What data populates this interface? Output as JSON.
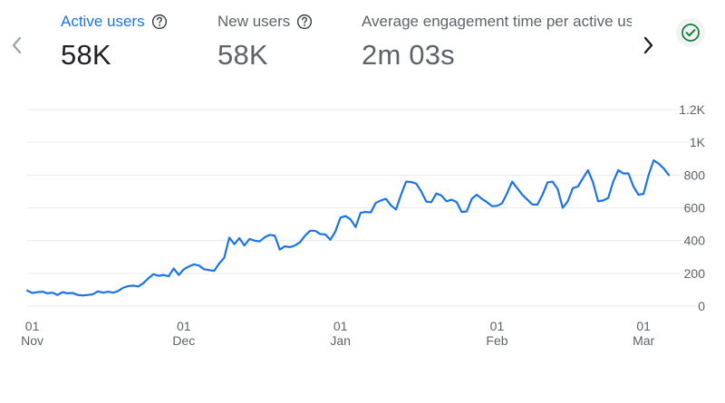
{
  "metrics": [
    {
      "label": "Active users",
      "value": "58K",
      "active": true
    },
    {
      "label": "New users",
      "value": "58K",
      "active": false
    },
    {
      "label": "Average engagement time per active us",
      "value": "2m 03s",
      "active": false
    }
  ],
  "icons": {
    "prev": "chevron-left-icon",
    "next": "chevron-right-icon",
    "help": "help-circle-icon",
    "status": "check-circle-icon"
  },
  "colors": {
    "line": "#1a73e8",
    "active_label": "#1a73e8",
    "status_check": "#188038"
  },
  "chart_data": {
    "type": "line",
    "title": "",
    "xlabel": "",
    "ylabel": "",
    "x_start": "2023-10-31",
    "ylim": [
      0,
      1200
    ],
    "y_ticks": [
      "1.2K",
      "1K",
      "800",
      "600",
      "400",
      "200",
      "0"
    ],
    "y_tick_values": [
      1200,
      1000,
      800,
      600,
      400,
      200,
      0
    ],
    "x_ticks": [
      {
        "day": "01",
        "month": "Nov",
        "date": "2023-11-01"
      },
      {
        "day": "01",
        "month": "Dec",
        "date": "2023-12-01"
      },
      {
        "day": "01",
        "month": "Jan",
        "date": "2024-01-01"
      },
      {
        "day": "01",
        "month": "Feb",
        "date": "2024-02-01"
      },
      {
        "day": "01",
        "month": "Mar",
        "date": "2024-03-01"
      }
    ],
    "grid": true,
    "series": [
      {
        "values": [
          95,
          80,
          85,
          88,
          78,
          82,
          68,
          85,
          78,
          80,
          68,
          65,
          68,
          72,
          90,
          82,
          88,
          82,
          92,
          112,
          122,
          125,
          120,
          140,
          170,
          195,
          185,
          190,
          182,
          230,
          190,
          225,
          242,
          255,
          248,
          225,
          220,
          215,
          260,
          295,
          418,
          378,
          415,
          370,
          410,
          400,
          395,
          420,
          435,
          430,
          345,
          365,
          360,
          370,
          390,
          430,
          460,
          460,
          440,
          438,
          405,
          455,
          540,
          550,
          530,
          482,
          570,
          575,
          572,
          630,
          645,
          655,
          615,
          590,
          680,
          760,
          758,
          748,
          700,
          638,
          635,
          688,
          675,
          640,
          650,
          635,
          575,
          578,
          655,
          680,
          655,
          635,
          610,
          612,
          628,
          690,
          760,
          720,
          680,
          650,
          620,
          620,
          680,
          755,
          760,
          715,
          600,
          640,
          720,
          730,
          780,
          830,
          755,
          640,
          645,
          660,
          760,
          830,
          810,
          810,
          730,
          680,
          685,
          800,
          890,
          870,
          840,
          800
        ]
      }
    ]
  }
}
